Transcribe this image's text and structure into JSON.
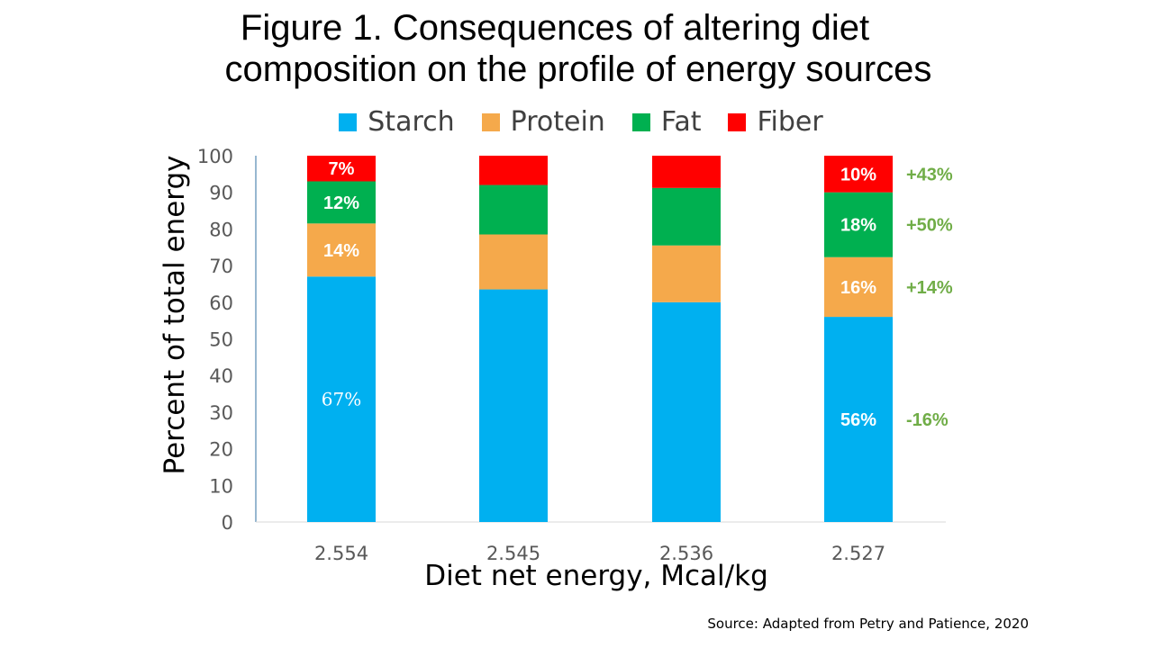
{
  "title": {
    "line1": "Figure 1. Consequences of altering diet",
    "line2": "composition on the profile of energy sources"
  },
  "source": "Source: Adapted from Petry and Patience, 2020",
  "chart_data": {
    "type": "bar",
    "stacked": true,
    "title": "Figure 1. Consequences of altering diet composition on the profile of energy sources",
    "xlabel": "Diet net energy, Mcal/kg",
    "ylabel": "Percent of total energy",
    "ylim": [
      0,
      100
    ],
    "yticks": [
      0,
      10,
      20,
      30,
      40,
      50,
      60,
      70,
      80,
      90,
      100
    ],
    "categories": [
      "2.554",
      "2.545",
      "2.536",
      "2.527"
    ],
    "legend_position": "top",
    "grid": false,
    "series": [
      {
        "name": "Starch",
        "color": "#00B0F0",
        "values": [
          67,
          63.5,
          60,
          56
        ],
        "labels": [
          "67%",
          "",
          "",
          "56%"
        ]
      },
      {
        "name": "Protein",
        "color": "#F5A94B",
        "values": [
          14.5,
          15,
          15.5,
          16.3
        ],
        "labels": [
          "14%",
          "",
          "",
          "16%"
        ]
      },
      {
        "name": "Fat",
        "color": "#00B050",
        "values": [
          11.5,
          13.5,
          15.7,
          17.7
        ],
        "labels": [
          "12%",
          "",
          "",
          "18%"
        ]
      },
      {
        "name": "Fiber",
        "color": "#FF0000",
        "values": [
          7,
          8,
          8.8,
          10
        ],
        "labels": [
          "7%",
          "",
          "",
          "10%"
        ]
      }
    ],
    "annotations": [
      {
        "text": "+43%",
        "series": "Fiber",
        "category": "2.527",
        "color": "#70AD47"
      },
      {
        "text": "+50%",
        "series": "Fat",
        "category": "2.527",
        "color": "#70AD47"
      },
      {
        "text": "+14%",
        "series": "Protein",
        "category": "2.527",
        "color": "#70AD47"
      },
      {
        "text": "-16%",
        "series": "Starch",
        "category": "2.527",
        "color": "#70AD47"
      }
    ]
  }
}
